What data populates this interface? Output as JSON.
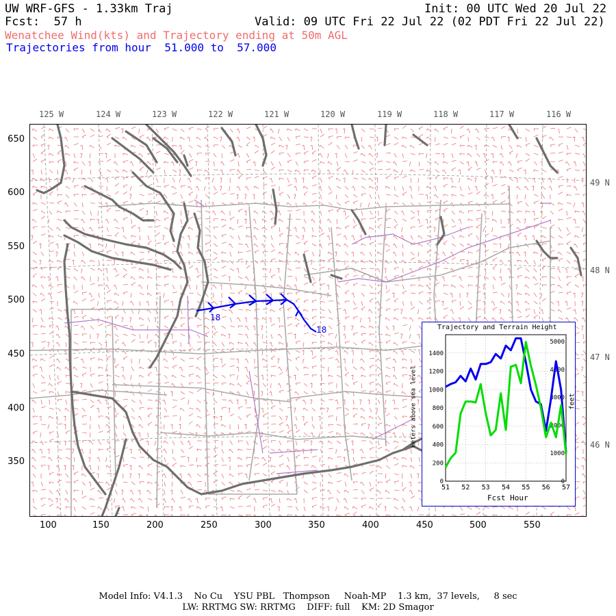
{
  "header": {
    "line1_left": "UW WRF-GFS - 1.33km Traj",
    "line1_right": "Init: 00 UTC Wed 20 Jul 22",
    "line2_left": "Fcst:  57 h",
    "line2_right": "Valid: 09 UTC Fri 22 Jul 22 (02 PDT Fri 22 Jul 22)",
    "line3": "Wenatchee Wind(kts) and Trajectory ending at 50m AGL",
    "line4": "Trajectories from hour  51.000 to  57.000"
  },
  "lon_labels": [
    "125 W",
    "124 W",
    "123 W",
    "122 W",
    "121 W",
    "120 W",
    "119 W",
    "118 W",
    "117 W",
    "116 W"
  ],
  "lat_labels": [
    "49 N",
    "48 N",
    "47 N",
    "46 N"
  ],
  "y_ticks": [
    "650",
    "600",
    "550",
    "500",
    "450",
    "400",
    "350"
  ],
  "x_ticks": [
    "100",
    "150",
    "200",
    "250",
    "300",
    "350",
    "400",
    "450",
    "500",
    "550"
  ],
  "trajectory_labels": {
    "start": "18",
    "end": "18"
  },
  "colors": {
    "wind_barbs": "#f07070",
    "trajectory": "#0000ee",
    "terrain": "#00dd00",
    "coast": "#6e6e6e",
    "borders": "#aaaaaa",
    "rivers": "#b07ac8"
  },
  "inset": {
    "title": "Trajectory and Terrain Height",
    "ylabel_left": "meters above sea level",
    "ylabel_right": "feet",
    "xlabel": "Fcst Hour",
    "left_ticks": [
      "0",
      "200",
      "400",
      "600",
      "800",
      "1000",
      "1200",
      "1400"
    ],
    "right_ticks": [
      "0",
      "1000",
      "2000",
      "3000",
      "4000",
      "5000"
    ],
    "x_ticks": [
      "51",
      "52",
      "53",
      "54",
      "55",
      "56",
      "57"
    ]
  },
  "chart_data": {
    "type": "line",
    "title": "Trajectory and Terrain Height",
    "xlabel": "Fcst Hour",
    "ylabel": "meters above sea level",
    "xlim": [
      51,
      57
    ],
    "ylim": [
      0,
      1600
    ],
    "series": [
      {
        "color": "#0000ee",
        "x": [
          51.0,
          51.25,
          51.5,
          51.75,
          52.0,
          52.25,
          52.5,
          52.75,
          53.0,
          53.25,
          53.5,
          53.75,
          54.0,
          54.25,
          54.5,
          54.75,
          55.0,
          55.25,
          55.5,
          55.75,
          56.0,
          56.25,
          56.5,
          56.75,
          57.0
        ],
        "values": [
          1030,
          1060,
          1080,
          1150,
          1090,
          1230,
          1110,
          1280,
          1280,
          1300,
          1390,
          1340,
          1480,
          1430,
          1560,
          1560,
          1300,
          1000,
          870,
          840,
          550,
          900,
          1310,
          1000,
          310
        ]
      },
      {
        "color": "#00dd00",
        "x": [
          51.0,
          51.25,
          51.5,
          51.75,
          52.0,
          52.25,
          52.5,
          52.75,
          53.0,
          53.25,
          53.5,
          53.75,
          54.0,
          54.25,
          54.5,
          54.75,
          55.0,
          55.25,
          55.5,
          55.75,
          56.0,
          56.25,
          56.5,
          56.75,
          57.0
        ],
        "values": [
          150,
          250,
          310,
          740,
          870,
          870,
          860,
          1060,
          740,
          500,
          560,
          960,
          560,
          1250,
          1270,
          1070,
          1520,
          1260,
          1050,
          800,
          480,
          640,
          480,
          830,
          290
        ]
      }
    ]
  },
  "footer": {
    "line1": "Model Info: V4.1.3    No Cu    YSU PBL   Thompson     Noah-MP    1.3 km,  37 levels,     8 sec",
    "line2": "LW: RRTMG SW: RRTMG    DIFF: full    KM: 2D Smagor"
  }
}
